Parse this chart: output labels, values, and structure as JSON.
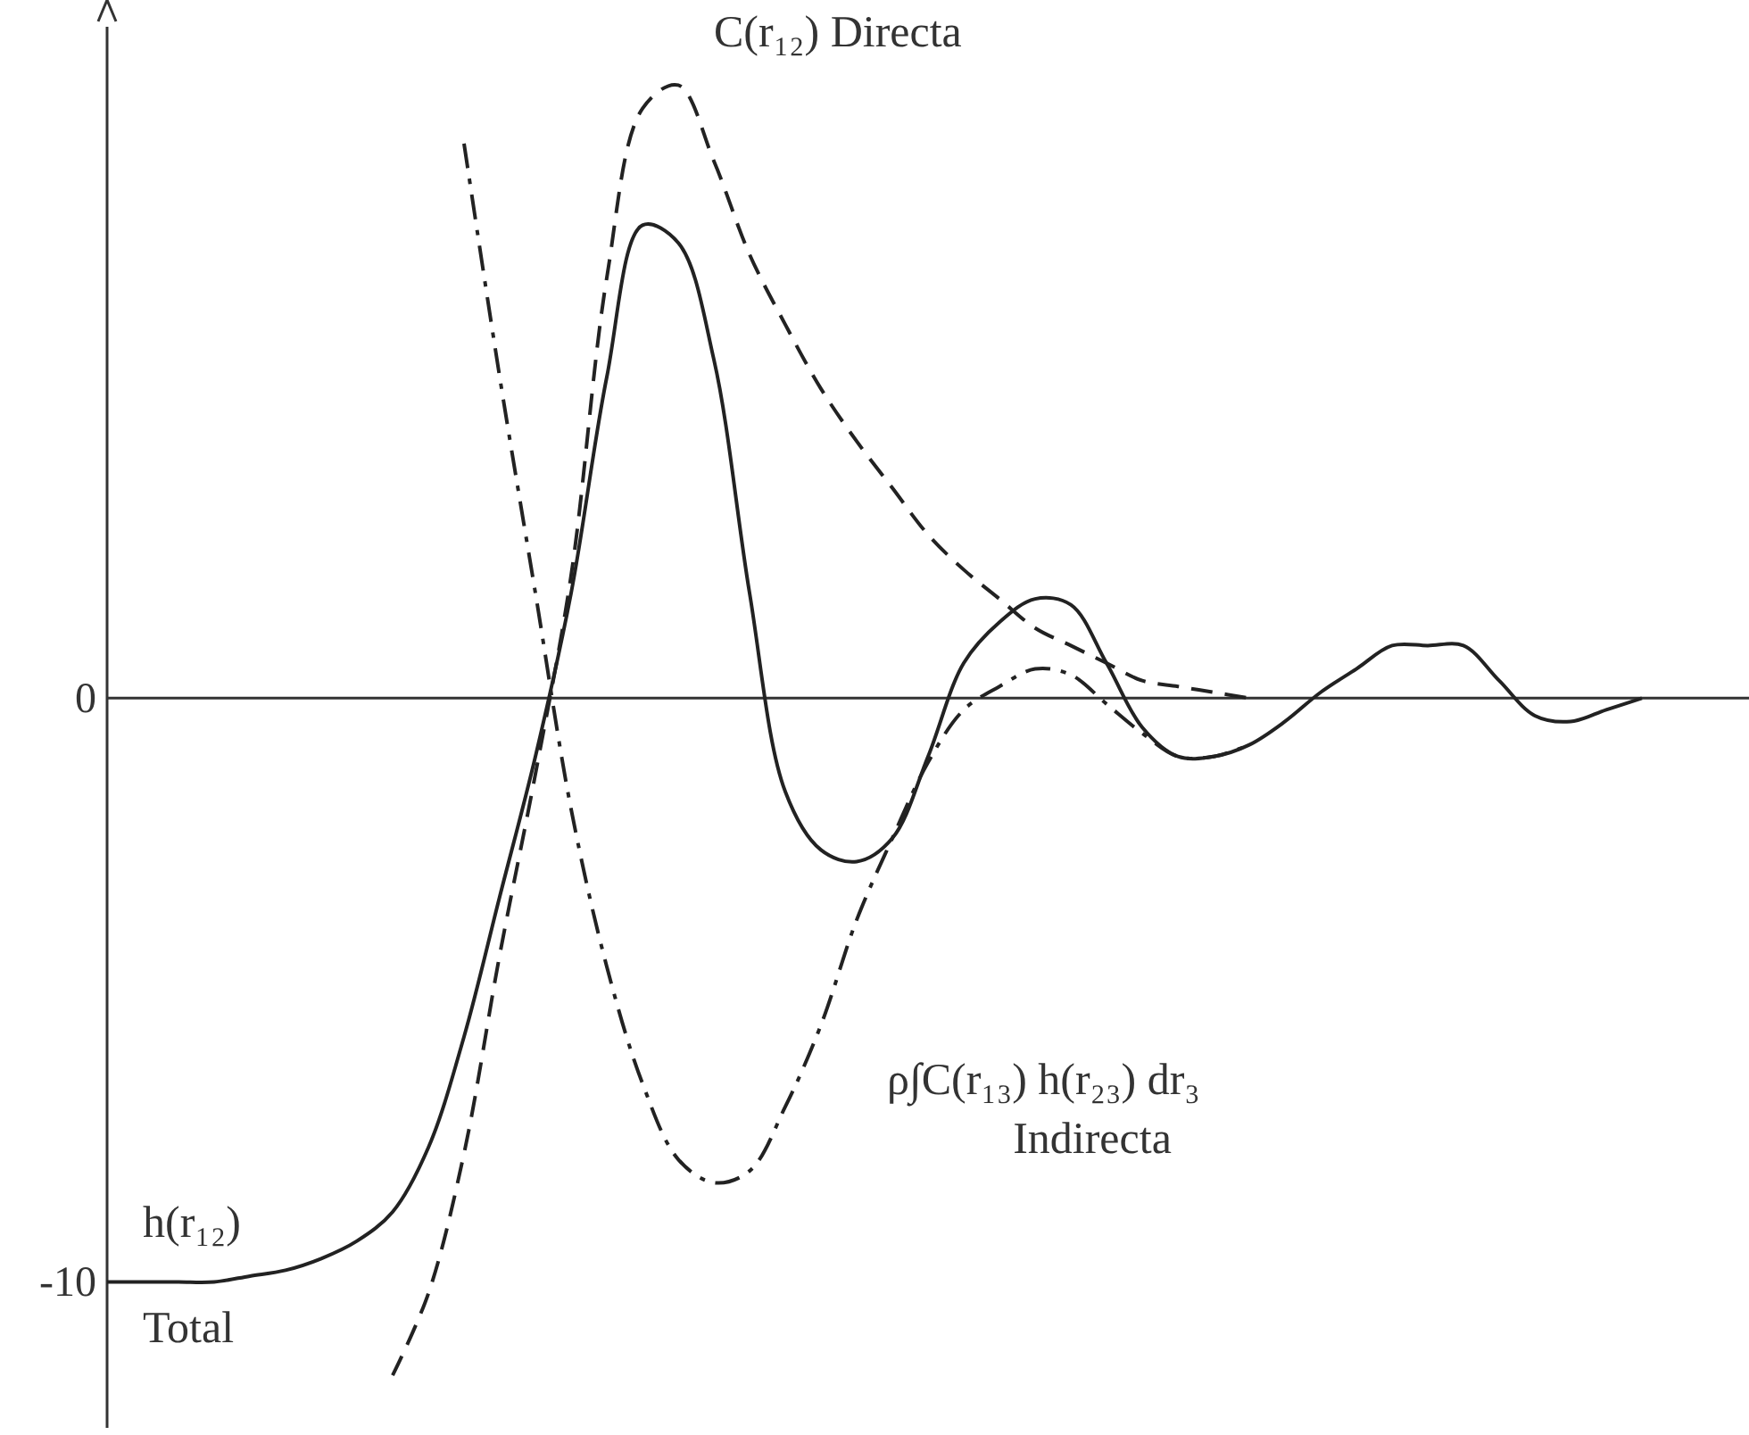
{
  "chart_data": {
    "type": "line",
    "categories": [
      null,
      null,
      null,
      null,
      null,
      null,
      null,
      null,
      null,
      null,
      null,
      null,
      null,
      null,
      null,
      null,
      null,
      null,
      null,
      null,
      null,
      null,
      null,
      null,
      null,
      null,
      null,
      null,
      null,
      null,
      null,
      null,
      null,
      null,
      null,
      null,
      null,
      null,
      null,
      null,
      null,
      null,
      null,
      null,
      null
    ],
    "series": [
      {
        "color": "#222222",
        "line_style": "solid",
        "values": [
          -10.0,
          -10.0,
          -10.0,
          -10.0,
          -9.9,
          -9.8,
          -9.6,
          -9.3,
          -8.8,
          -7.7,
          -5.8,
          -3.4,
          -1.0,
          1.8,
          5.5,
          8.1,
          7.8,
          5.8,
          1.8,
          -1.6,
          -2.6,
          -2.8,
          -2.4,
          -1.0,
          0.6,
          1.3,
          1.7,
          1.6,
          0.6,
          -0.5,
          -1.0,
          -1.0,
          -0.8,
          -0.4,
          0.1,
          0.5,
          0.9,
          0.9,
          0.9,
          0.3,
          -0.3,
          -0.4,
          -0.2,
          0.0,
          null
        ]
      },
      {
        "color": "#222222",
        "line_style": "dashed",
        "values": [
          null,
          null,
          null,
          null,
          null,
          null,
          null,
          null,
          -11.6,
          -10.2,
          -7.8,
          -4.4,
          -1.3,
          2.1,
          7.2,
          10.1,
          10.5,
          9.2,
          7.6,
          6.4,
          5.3,
          4.4,
          3.6,
          2.8,
          2.2,
          1.7,
          1.2,
          0.9,
          0.6,
          0.3,
          0.2,
          0.1,
          0.0,
          null,
          null,
          null,
          null,
          null,
          null,
          null,
          null,
          null,
          null,
          null,
          null
        ]
      },
      {
        "color": "#222222",
        "line_style": "dashdot",
        "values": [
          null,
          null,
          null,
          null,
          null,
          null,
          null,
          null,
          null,
          null,
          9.5,
          5.5,
          1.8,
          -1.9,
          -4.6,
          -6.6,
          -7.9,
          -8.3,
          -8.1,
          -7.0,
          -5.6,
          -3.8,
          -2.4,
          -1.1,
          -0.2,
          0.2,
          0.5,
          0.4,
          -0.1,
          -0.6,
          -1.0,
          -1.0,
          -0.8,
          null,
          null,
          null,
          null,
          null,
          null,
          null,
          null,
          null,
          null,
          null,
          null
        ]
      }
    ],
    "ylim": [
      -12.5,
      11.5
    ],
    "yticks": [
      0,
      -10
    ],
    "tick_labels": "y",
    "annotations": [
      "C(r₁₂) Directa",
      "ρ∫C(r₁₃) h(r₂₃) dr₃",
      "Indirecta",
      "h(r₁₂)",
      "Total"
    ]
  }
}
